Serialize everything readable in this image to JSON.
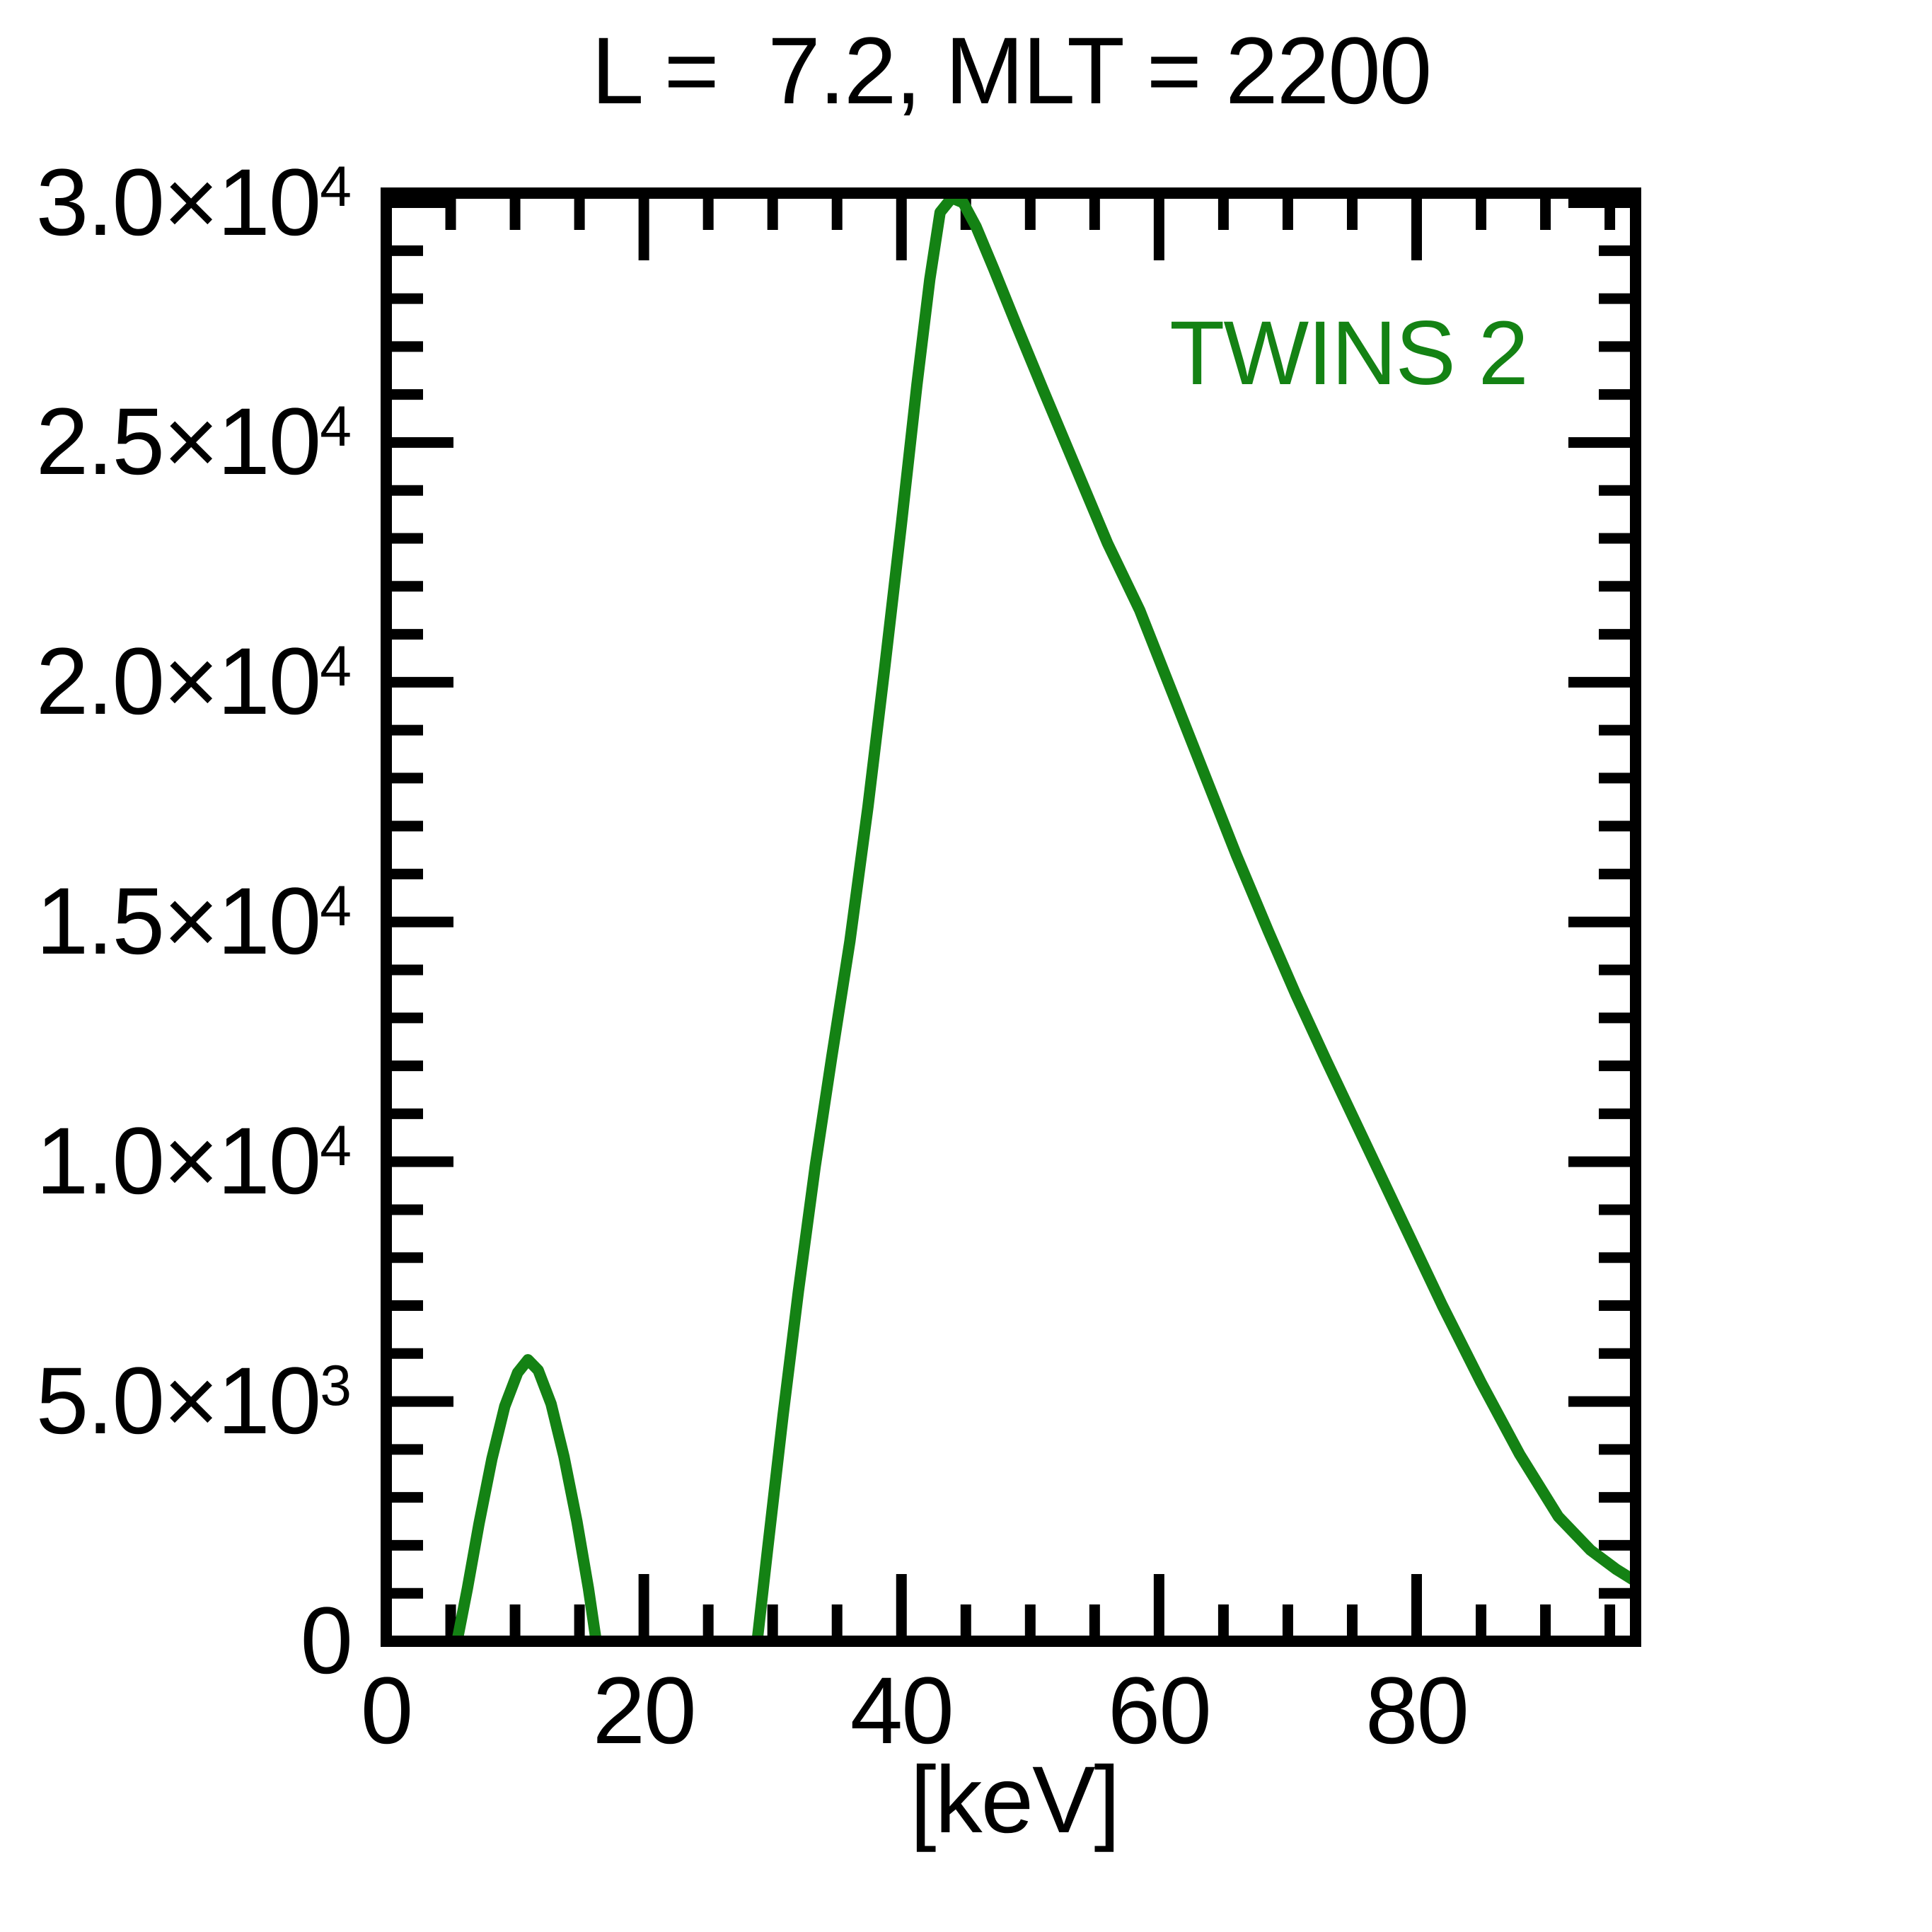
{
  "title": "L =  7.2, MLT = 2200",
  "legend": {
    "label": "TWINS 2"
  },
  "colors": {
    "line": "#148214",
    "axis": "#000000",
    "background": "#ffffff",
    "title_text": "#000000"
  },
  "chart_data": {
    "type": "line",
    "title": "L =  7.2, MLT = 2200",
    "xlabel": "[keV]",
    "ylabel": "",
    "xlim": [
      0,
      97
    ],
    "ylim": [
      0,
      30200
    ],
    "grid": false,
    "legend_position": "upper-right-inside",
    "x_major_ticks": [
      {
        "value": 0,
        "label": "0"
      },
      {
        "value": 20,
        "label": "20"
      },
      {
        "value": 40,
        "label": "40"
      },
      {
        "value": 60,
        "label": "60"
      },
      {
        "value": 80,
        "label": "80"
      }
    ],
    "x_minor_step": 5,
    "y_major_ticks": [
      {
        "value": 0,
        "mantissa": "0",
        "exponent": ""
      },
      {
        "value": 5000,
        "mantissa": "5.0×10",
        "exponent": "3"
      },
      {
        "value": 10000,
        "mantissa": "1.0×10",
        "exponent": "4"
      },
      {
        "value": 15000,
        "mantissa": "1.5×10",
        "exponent": "4"
      },
      {
        "value": 20000,
        "mantissa": "2.0×10",
        "exponent": "4"
      },
      {
        "value": 25000,
        "mantissa": "2.5×10",
        "exponent": "4"
      },
      {
        "value": 30000,
        "mantissa": "3.0×10",
        "exponent": "4"
      }
    ],
    "y_minor_step": 1000,
    "series": [
      {
        "name": "TWINS 2",
        "color": "#148214",
        "points": [
          [
            4.0,
            0
          ],
          [
            5.5,
            0
          ],
          [
            6.3,
            1100
          ],
          [
            7.2,
            2450
          ],
          [
            8.2,
            3800
          ],
          [
            9.2,
            4900
          ],
          [
            10.2,
            5600
          ],
          [
            11.0,
            5870
          ],
          [
            11.8,
            5650
          ],
          [
            12.8,
            4950
          ],
          [
            13.8,
            3850
          ],
          [
            14.8,
            2500
          ],
          [
            15.7,
            1100
          ],
          [
            16.3,
            0
          ],
          [
            18,
            0
          ],
          [
            21,
            0
          ],
          [
            24,
            0
          ],
          [
            27,
            0
          ],
          [
            28.8,
            0
          ],
          [
            29.6,
            1900
          ],
          [
            30.8,
            4700
          ],
          [
            32,
            7300
          ],
          [
            33.3,
            9900
          ],
          [
            34.6,
            12200
          ],
          [
            36,
            14600
          ],
          [
            37.4,
            17400
          ],
          [
            38.7,
            20300
          ],
          [
            40,
            23300
          ],
          [
            41.2,
            26200
          ],
          [
            42.2,
            28400
          ],
          [
            43,
            29800
          ],
          [
            43.9,
            30100
          ],
          [
            44.8,
            30000
          ],
          [
            45.8,
            29500
          ],
          [
            47.2,
            28600
          ],
          [
            49,
            27400
          ],
          [
            51,
            26100
          ],
          [
            53.5,
            24500
          ],
          [
            56,
            22900
          ],
          [
            58.5,
            21500
          ],
          [
            61,
            19800
          ],
          [
            63.5,
            18100
          ],
          [
            66,
            16400
          ],
          [
            68.5,
            14800
          ],
          [
            70.6,
            13500
          ],
          [
            73,
            12100
          ],
          [
            76,
            10400
          ],
          [
            79,
            8700
          ],
          [
            82,
            7000
          ],
          [
            85,
            5400
          ],
          [
            88,
            3900
          ],
          [
            91,
            2600
          ],
          [
            93.5,
            1900
          ],
          [
            95.5,
            1500
          ],
          [
            97,
            1250
          ]
        ]
      }
    ]
  }
}
